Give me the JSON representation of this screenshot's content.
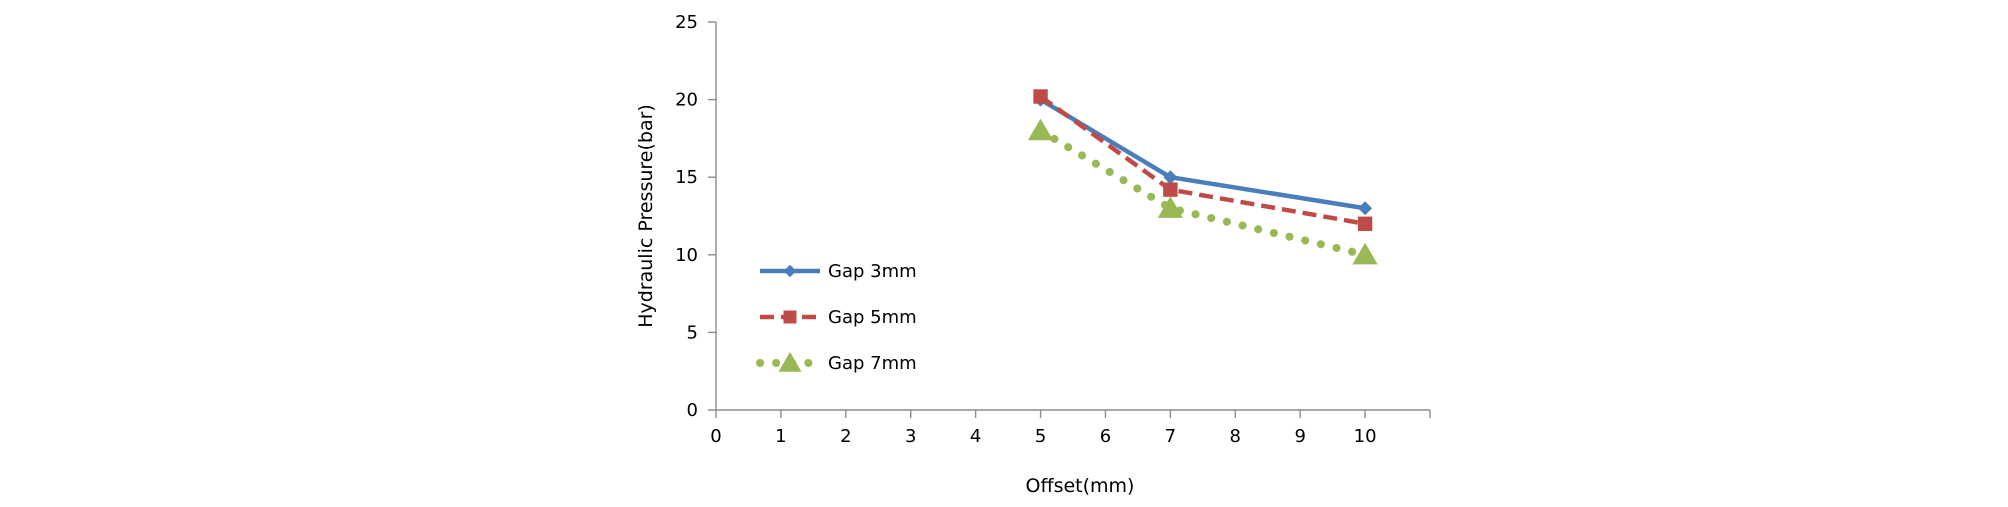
{
  "chart_data": {
    "type": "line",
    "title": "",
    "xlabel": "Offset(mm)",
    "ylabel": "Hydraulic Pressure(bar)",
    "categories": [
      "0",
      "1",
      "2",
      "3",
      "4",
      "5",
      "6",
      "7",
      "8",
      "9",
      "10"
    ],
    "ylim": [
      0,
      25
    ],
    "yticks": [
      "0",
      "5",
      "10",
      "15",
      "20",
      "25"
    ],
    "grid": false,
    "legend_position": "left-middle",
    "series": [
      {
        "name": "Gap 3mm",
        "color": "#4a7ebb",
        "marker": "diamond",
        "line": "solid",
        "points": [
          {
            "x": "5",
            "y": 20
          },
          {
            "x": "7",
            "y": 15
          },
          {
            "x": "10",
            "y": 13
          }
        ]
      },
      {
        "name": "Gap 5mm",
        "color": "#be4b48",
        "marker": "square",
        "line": "dashed",
        "points": [
          {
            "x": "5",
            "y": 20.2
          },
          {
            "x": "7",
            "y": 14.2
          },
          {
            "x": "10",
            "y": 12
          }
        ]
      },
      {
        "name": "Gap 7mm",
        "color": "#98b954",
        "marker": "triangle",
        "line": "dotted",
        "points": [
          {
            "x": "5",
            "y": 18
          },
          {
            "x": "7",
            "y": 13
          },
          {
            "x": "10",
            "y": 10
          }
        ]
      }
    ]
  }
}
